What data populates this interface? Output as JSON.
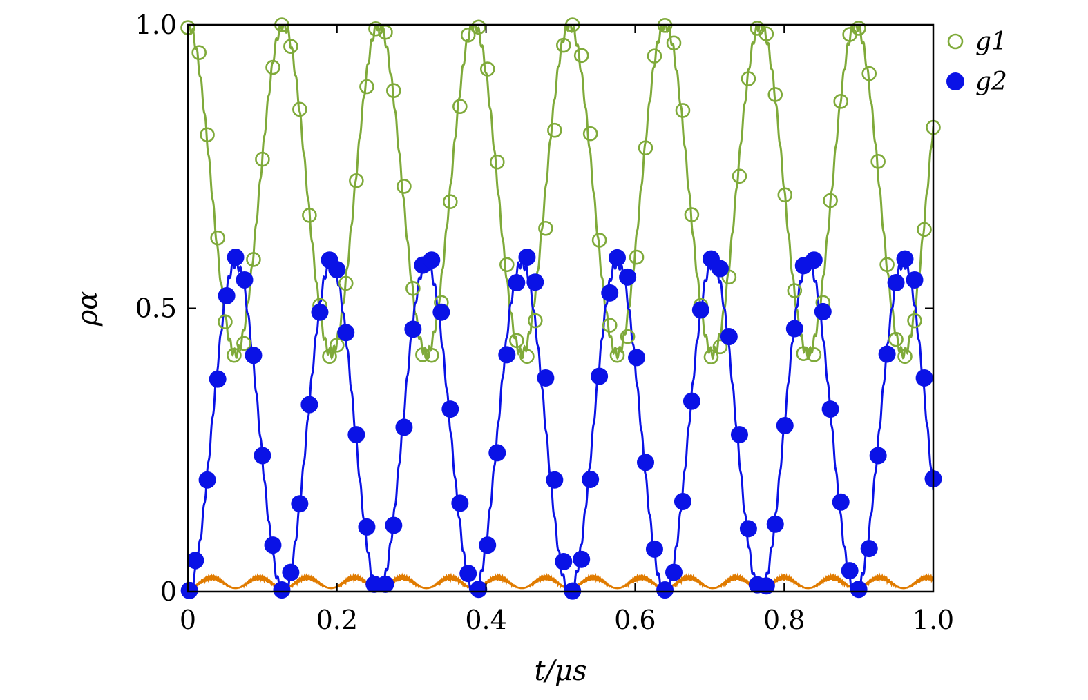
{
  "chart_data": {
    "type": "line",
    "xlabel": "t/μs",
    "ylabel": "ρα",
    "xlim": [
      0,
      1.0
    ],
    "ylim": [
      0,
      1.0
    ],
    "xticks": [
      "0",
      "0.2",
      "0.4",
      "0.6",
      "0.8",
      "1.0"
    ],
    "xtick_values": [
      0,
      0.2,
      0.4,
      0.6,
      0.8,
      1.0
    ],
    "yticks": [
      "0",
      "0.5",
      "1.0"
    ],
    "ytick_values": [
      0,
      0.5,
      1.0
    ],
    "grid": false,
    "legend_position": "right, outside plot top",
    "period_us": 0.128,
    "series": [
      {
        "name": "g1",
        "kind": "fit-line + open-circle markers",
        "color": "#7faa3a",
        "model": "0.71 + 0.29*cos(2*pi*t/0.128)",
        "marker_x": [
          0.0,
          0.015,
          0.026,
          0.04,
          0.05,
          0.062,
          0.075,
          0.088,
          0.1,
          0.114,
          0.126,
          0.138,
          0.15,
          0.163,
          0.177,
          0.19,
          0.2,
          0.212,
          0.226,
          0.24,
          0.252,
          0.265,
          0.276,
          0.29,
          0.302,
          0.315,
          0.327,
          0.34,
          0.352,
          0.365,
          0.376,
          0.39,
          0.402,
          0.415,
          0.428,
          0.441,
          0.455,
          0.466,
          0.48,
          0.492,
          0.504,
          0.516,
          0.528,
          0.54,
          0.552,
          0.566,
          0.576,
          0.59,
          0.602,
          0.614,
          0.626,
          0.64,
          0.652,
          0.664,
          0.676,
          0.688,
          0.702,
          0.714,
          0.726,
          0.74,
          0.752,
          0.764,
          0.776,
          0.788,
          0.801,
          0.814,
          0.826,
          0.84,
          0.852,
          0.862,
          0.876,
          0.888,
          0.9,
          0.914,
          0.926,
          0.938,
          0.95,
          0.962,
          0.975,
          0.988,
          1.0
        ],
        "marker_y": [
          0.995,
          0.951,
          0.806,
          0.624,
          0.476,
          0.417,
          0.438,
          0.586,
          0.763,
          0.925,
          1.0,
          0.962,
          0.851,
          0.664,
          0.505,
          0.415,
          0.435,
          0.544,
          0.725,
          0.891,
          0.993,
          0.987,
          0.884,
          0.715,
          0.535,
          0.418,
          0.417,
          0.51,
          0.688,
          0.856,
          0.982,
          0.996,
          0.922,
          0.758,
          0.577,
          0.443,
          0.415,
          0.478,
          0.641,
          0.814,
          0.964,
          1.0,
          0.946,
          0.808,
          0.62,
          0.47,
          0.417,
          0.45,
          0.59,
          0.783,
          0.945,
          0.999,
          0.968,
          0.849,
          0.665,
          0.505,
          0.414,
          0.432,
          0.555,
          0.733,
          0.905,
          0.994,
          0.984,
          0.877,
          0.7,
          0.531,
          0.42,
          0.418,
          0.51,
          0.69,
          0.865,
          0.983,
          0.994,
          0.914,
          0.759,
          0.577,
          0.445,
          0.415,
          0.478,
          0.639,
          0.819
        ]
      },
      {
        "name": "g2",
        "kind": "fit-line + filled-circle markers",
        "color": "#0a12e6",
        "model": "0.29 - 0.29*cos(2*pi*t/0.128)",
        "marker_x": [
          0.002,
          0.01,
          0.026,
          0.04,
          0.052,
          0.064,
          0.076,
          0.088,
          0.1,
          0.114,
          0.126,
          0.138,
          0.15,
          0.163,
          0.177,
          0.19,
          0.2,
          0.212,
          0.226,
          0.24,
          0.25,
          0.265,
          0.276,
          0.29,
          0.302,
          0.315,
          0.327,
          0.34,
          0.352,
          0.365,
          0.376,
          0.39,
          0.402,
          0.415,
          0.428,
          0.441,
          0.455,
          0.466,
          0.48,
          0.492,
          0.504,
          0.516,
          0.528,
          0.54,
          0.552,
          0.566,
          0.576,
          0.59,
          0.602,
          0.614,
          0.626,
          0.64,
          0.652,
          0.664,
          0.676,
          0.688,
          0.702,
          0.714,
          0.726,
          0.74,
          0.752,
          0.764,
          0.776,
          0.788,
          0.801,
          0.814,
          0.826,
          0.84,
          0.852,
          0.862,
          0.876,
          0.888,
          0.9,
          0.914,
          0.926,
          0.938,
          0.95,
          0.962,
          0.975,
          0.988,
          1.0
        ],
        "marker_y": [
          0.002,
          0.055,
          0.197,
          0.375,
          0.522,
          0.59,
          0.55,
          0.417,
          0.24,
          0.082,
          0.003,
          0.034,
          0.155,
          0.33,
          0.493,
          0.585,
          0.568,
          0.457,
          0.277,
          0.114,
          0.013,
          0.013,
          0.117,
          0.29,
          0.463,
          0.576,
          0.585,
          0.493,
          0.322,
          0.156,
          0.032,
          0.004,
          0.082,
          0.245,
          0.418,
          0.545,
          0.59,
          0.546,
          0.377,
          0.197,
          0.053,
          0.001,
          0.057,
          0.198,
          0.38,
          0.527,
          0.589,
          0.555,
          0.413,
          0.228,
          0.075,
          0.003,
          0.034,
          0.159,
          0.336,
          0.497,
          0.587,
          0.57,
          0.45,
          0.277,
          0.111,
          0.012,
          0.01,
          0.119,
          0.293,
          0.464,
          0.575,
          0.585,
          0.494,
          0.322,
          0.158,
          0.037,
          0.004,
          0.076,
          0.24,
          0.419,
          0.545,
          0.587,
          0.55,
          0.377,
          0.199
        ]
      },
      {
        "name": "",
        "kind": "line",
        "color": "#e07b00",
        "model": "small oscillating population near 0 (max ~0.035)"
      }
    ]
  }
}
